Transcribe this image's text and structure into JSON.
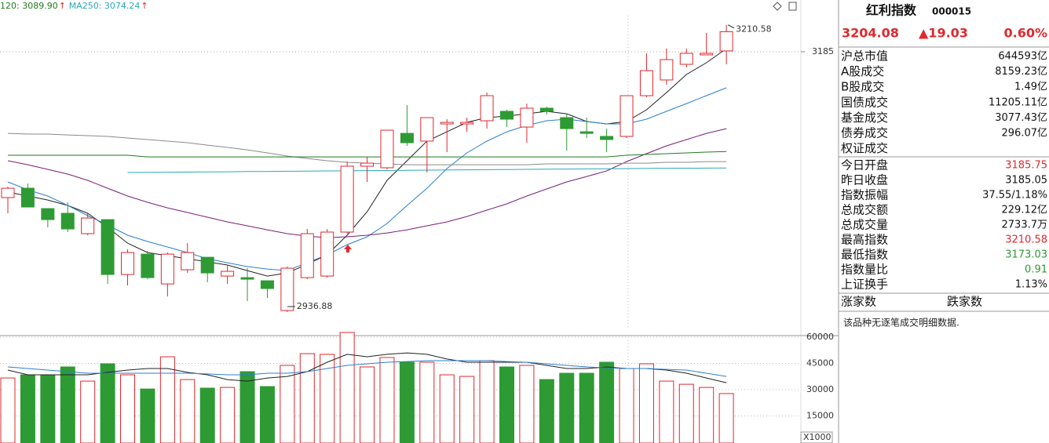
{
  "chart_data": [
    {
      "type": "candlestick",
      "legend_items": [
        {
          "label": "120: 3089.90",
          "arrow": "↑",
          "color": "#1f7a1f"
        },
        {
          "label": "MA250: 3074.24",
          "arrow": "↑",
          "color": "#2aa8b8"
        }
      ],
      "open": [
        3046.0,
        3054.9,
        3035.5,
        3031.0,
        3011.6,
        3025.0,
        2972.7,
        2992.1,
        2963.7,
        2977.2,
        2989.1,
        2971.2,
        2969.7,
        2966.7,
        2938.4,
        2969.7,
        2971.2,
        3013.1,
        3075.9,
        3074.4,
        3107.2,
        3099.8,
        3116.2,
        3116.2,
        3119.2,
        3128.2,
        3113.2,
        3131.2,
        3122.2,
        3108.7,
        3104.3,
        3104.3,
        3143.1,
        3158.1,
        3173.0,
        3182.0,
        3185.75
      ],
      "close": [
        3054.9,
        3037.0,
        3025.0,
        3016.1,
        3026.5,
        2972.7,
        2993.6,
        2969.7,
        2992.1,
        2993.6,
        2974.2,
        2975.7,
        2968.2,
        2959.3,
        2978.7,
        3011.6,
        3013.1,
        3075.9,
        3078.8,
        3110.2,
        3098.3,
        3122.2,
        3117.7,
        3117.7,
        3143.1,
        3120.7,
        3131.2,
        3128.2,
        3111.7,
        3107.2,
        3101.3,
        3143.1,
        3167.0,
        3177.5,
        3183.5,
        3183.5,
        3204.08
      ],
      "high": [
        3056.4,
        3059.4,
        3035.5,
        3041.5,
        3031.0,
        3025.0,
        2996.6,
        2995.1,
        2993.6,
        3002.6,
        2989.1,
        2981.7,
        2978.7,
        2966.7,
        2980.2,
        3016.1,
        3016.1,
        3080.3,
        3084.8,
        3110.2,
        3134.1,
        3122.2,
        3120.7,
        3122.2,
        3146.1,
        3129.7,
        3135.6,
        3132.6,
        3125.2,
        3122.2,
        3111.7,
        3143.1,
        3183.5,
        3188.0,
        3188.0,
        3202.9,
        3210.58
      ],
      "low": [
        3031.0,
        3037.0,
        3017.6,
        3013.1,
        3010.1,
        2963.7,
        2962.2,
        2968.2,
        2951.8,
        2974.2,
        2965.2,
        2963.7,
        2947.3,
        2950.3,
        2936.88,
        2968.2,
        2969.7,
        3011.6,
        3060.9,
        3072.9,
        3095.3,
        3069.9,
        3089.3,
        3108.7,
        3111.7,
        3113.2,
        3098.3,
        3125.2,
        3090.8,
        3102.8,
        3089.3,
        3102.8,
        3141.6,
        3153.6,
        3170.0,
        3182.0,
        3173.03
      ],
      "up_color": "#e0282e",
      "down_color": "#2e9a34",
      "series": [
        {
          "color": "#222222",
          "values": [
            3051.2,
            3047.5,
            3043.7,
            3038.5,
            3031.0,
            3017.6,
            3002.6,
            2993.6,
            2990.6,
            2987.7,
            2984.7,
            2981.7,
            2976.4,
            2971.2,
            2974.2,
            2982.4,
            2991.4,
            3010.1,
            3032.5,
            3062.4,
            3081.1,
            3099.8,
            3108.7,
            3117.7,
            3122.2,
            3123.7,
            3125.9,
            3128.2,
            3125.9,
            3118.5,
            3116.2,
            3118.5,
            3129.7,
            3146.1,
            3163.3,
            3174.5,
            3188.0
          ]
        },
        {
          "color": "#2a7fd0",
          "values": [
            3060.9,
            3053.4,
            3047.5,
            3038.5,
            3028.8,
            3019.8,
            3010.1,
            3004.1,
            2998.9,
            2993.6,
            2987.7,
            2983.9,
            2980.2,
            2977.9,
            2976.4,
            2983.9,
            2991.4,
            3001.1,
            3008.6,
            3021.3,
            3038.5,
            3054.9,
            3073.6,
            3088.6,
            3099.8,
            3108.7,
            3114.7,
            3119.2,
            3120.7,
            3118.5,
            3116.2,
            3116.2,
            3120.7,
            3128.2,
            3135.6,
            3143.1,
            3150.6
          ]
        },
        {
          "color": "#7a1f78",
          "values": [
            3081.1,
            3077.3,
            3072.9,
            3068.4,
            3062.4,
            3054.9,
            3047.5,
            3041.5,
            3036.2,
            3031.8,
            3027.3,
            3022.8,
            3019.1,
            3015.3,
            3011.6,
            3009.3,
            3007.8,
            3008.6,
            3010.1,
            3012.3,
            3015.3,
            3019.1,
            3022.8,
            3028.0,
            3034.0,
            3040.0,
            3047.5,
            3054.2,
            3060.9,
            3066.1,
            3071.4,
            3080.3,
            3087.8,
            3095.3,
            3101.3,
            3107.2,
            3111.7
          ]
        },
        {
          "color": "#8a8a8a",
          "values": [
            3107.2,
            3106.5,
            3106.5,
            3105.7,
            3105.0,
            3104.3,
            3102.8,
            3101.3,
            3099.8,
            3098.3,
            3096.0,
            3093.8,
            3091.5,
            3088.6,
            3085.6,
            3083.3,
            3081.1,
            3079.6,
            3078.8,
            3078.1,
            3077.3,
            3077.3,
            3077.3,
            3077.3,
            3077.3,
            3077.3,
            3077.3,
            3078.1,
            3078.1,
            3078.1,
            3078.1,
            3078.8,
            3078.8,
            3079.6,
            3079.6,
            3080.3,
            3080.3
          ]
        },
        {
          "color": "#1f7a1f",
          "values": [
            3086.3,
            3086.3,
            3086.3,
            3086.3,
            3086.3,
            3086.3,
            3086.3,
            3084.8,
            3084.8,
            3084.8,
            3084.8,
            3084.8,
            3084.8,
            3084.8,
            3084.8,
            3084.8,
            3084.8,
            3084.8,
            3084.8,
            3084.8,
            3084.8,
            3084.8,
            3084.8,
            3084.8,
            3084.8,
            3084.8,
            3084.8,
            3084.8,
            3084.8,
            3084.8,
            3084.8,
            3086.3,
            3087.1,
            3087.8,
            3088.6,
            3089.3,
            3089.9
          ]
        },
        {
          "color": "#2aa8b8",
          "values": [
            null,
            null,
            null,
            null,
            null,
            null,
            3069.9,
            3070.0,
            3070.2,
            3070.3,
            3070.5,
            3070.6,
            3070.8,
            3070.9,
            3071.1,
            3071.2,
            3071.4,
            3071.5,
            3071.7,
            3071.8,
            3072.0,
            3072.1,
            3072.3,
            3072.4,
            3072.6,
            3072.7,
            3072.9,
            3073.0,
            3073.2,
            3073.3,
            3073.5,
            3073.6,
            3073.8,
            3073.9,
            3074.0,
            3074.1,
            3074.24
          ]
        }
      ],
      "high_label": 3210.58,
      "low_label": 2936.88,
      "ylim": [
        2916.7,
        3234.3
      ],
      "yticks": [
        3185
      ]
    },
    {
      "type": "volume",
      "values": [
        36700,
        38500,
        38500,
        43000,
        34900,
        44800,
        38500,
        30400,
        48800,
        35800,
        30900,
        31300,
        40300,
        31800,
        43900,
        50600,
        50200,
        62700,
        43000,
        48400,
        45700,
        45700,
        38500,
        37600,
        46600,
        43000,
        43900,
        35800,
        39400,
        39400,
        45700,
        42100,
        44800,
        34900,
        33100,
        31300,
        27800
      ],
      "series": [
        {
          "color": "#222222",
          "values": [
            41200,
            38500,
            38500,
            38500,
            38500,
            39900,
            41200,
            42100,
            42100,
            39900,
            38500,
            35800,
            34900,
            36700,
            37600,
            40300,
            45700,
            50200,
            48800,
            50200,
            51000,
            50200,
            47500,
            45700,
            45700,
            45700,
            45700,
            43900,
            42100,
            42100,
            43000,
            42100,
            42100,
            41200,
            39400,
            36700,
            34000
          ]
        },
        {
          "color": "#2a7fd0",
          "values": [
            43000,
            42100,
            41200,
            40300,
            39400,
            39400,
            39400,
            39400,
            39400,
            39400,
            39000,
            38500,
            38500,
            39400,
            39400,
            40300,
            42100,
            43900,
            44800,
            45700,
            46100,
            46600,
            46600,
            46600,
            46600,
            46100,
            45700,
            44800,
            43900,
            43000,
            42500,
            42100,
            42100,
            41600,
            41200,
            39400,
            37600
          ]
        }
      ],
      "unit_label": "X1000",
      "ylim": [
        0,
        63600
      ],
      "yticks": [
        15000,
        30000,
        45000,
        60000
      ]
    }
  ],
  "quote_panel": {
    "name": "红利指数",
    "code": "000015",
    "price": "3204.08",
    "change": "▲19.03",
    "change_pct": "0.60%",
    "quote_color": "#e0282e",
    "market_rows": [
      {
        "label": "沪总市值",
        "value": "644593亿",
        "color": "#111111"
      },
      {
        "label": "A股成交",
        "value": "8159.23亿",
        "color": "#111111"
      },
      {
        "label": "B股成交",
        "value": "1.49亿",
        "color": "#111111"
      },
      {
        "label": "国债成交",
        "value": "11205.11亿",
        "color": "#111111"
      },
      {
        "label": "基金成交",
        "value": "3077.43亿",
        "color": "#111111"
      },
      {
        "label": "债券成交",
        "value": "296.07亿",
        "color": "#111111"
      },
      {
        "label": "权证成交"
      }
    ],
    "index_rows": [
      {
        "label": "今日开盘",
        "value": "3185.75",
        "color": "#e0282e"
      },
      {
        "label": "昨日收盘",
        "value": "3185.05",
        "color": "#111111"
      },
      {
        "label": "指数振幅",
        "value": "37.55/1.18%",
        "color": "#111111"
      },
      {
        "label": "总成交额",
        "value": "229.12亿",
        "color": "#111111"
      },
      {
        "label": "总成交量",
        "value": "2733.7万",
        "color": "#111111"
      },
      {
        "label": "最高指数",
        "value": "3210.58",
        "color": "#e0282e"
      },
      {
        "label": "最低指数",
        "value": "3173.03",
        "color": "#2e9a34"
      },
      {
        "label": "指数量比",
        "value": "0.91",
        "color": "#2e9a34"
      },
      {
        "label": "上证换手",
        "value": "1.13%",
        "color": "#111111"
      }
    ],
    "breadth_labels": [
      "涨家数",
      "跌家数"
    ],
    "note": "该品种无逐笔成交明细数据."
  }
}
